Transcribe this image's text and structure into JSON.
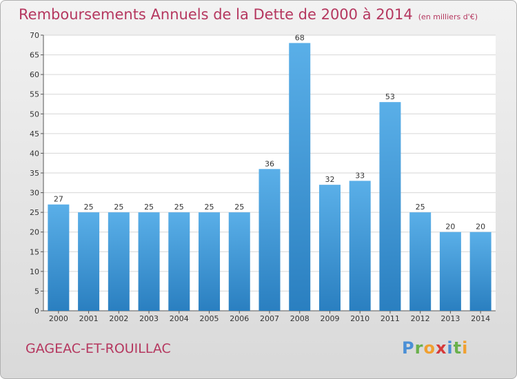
{
  "header": {
    "title": "Remboursements Annuels de la Dette de 2000 à 2014",
    "unit": "(en milliers d'€)"
  },
  "footer": {
    "commune": "GAGEAC-ET-ROUILLAC",
    "logo": [
      "P",
      "r",
      "o",
      "x",
      "i",
      "t",
      "i"
    ]
  },
  "colors": {
    "bar_top": "#5aafe8",
    "bar_bottom": "#2a7fc0",
    "title": "#b5375f",
    "logo": [
      "#4a8fd6",
      "#6ab04c",
      "#f0a030",
      "#d63a3a",
      "#4a8fd6",
      "#6ab04c",
      "#f0a030"
    ]
  },
  "chart_data": {
    "type": "bar",
    "title": "Remboursements Annuels de la Dette de 2000 à 2014",
    "xlabel": "",
    "ylabel": "",
    "categories": [
      "2000",
      "2001",
      "2002",
      "2003",
      "2004",
      "2005",
      "2006",
      "2007",
      "2008",
      "2009",
      "2010",
      "2011",
      "2012",
      "2013",
      "2014"
    ],
    "values": [
      27,
      25,
      25,
      25,
      25,
      25,
      25,
      36,
      68,
      32,
      33,
      53,
      25,
      20,
      20
    ],
    "ylim": [
      0,
      70
    ],
    "yticks": [
      0,
      5,
      10,
      15,
      20,
      25,
      30,
      35,
      40,
      45,
      50,
      55,
      60,
      65,
      70
    ],
    "grid": true
  }
}
